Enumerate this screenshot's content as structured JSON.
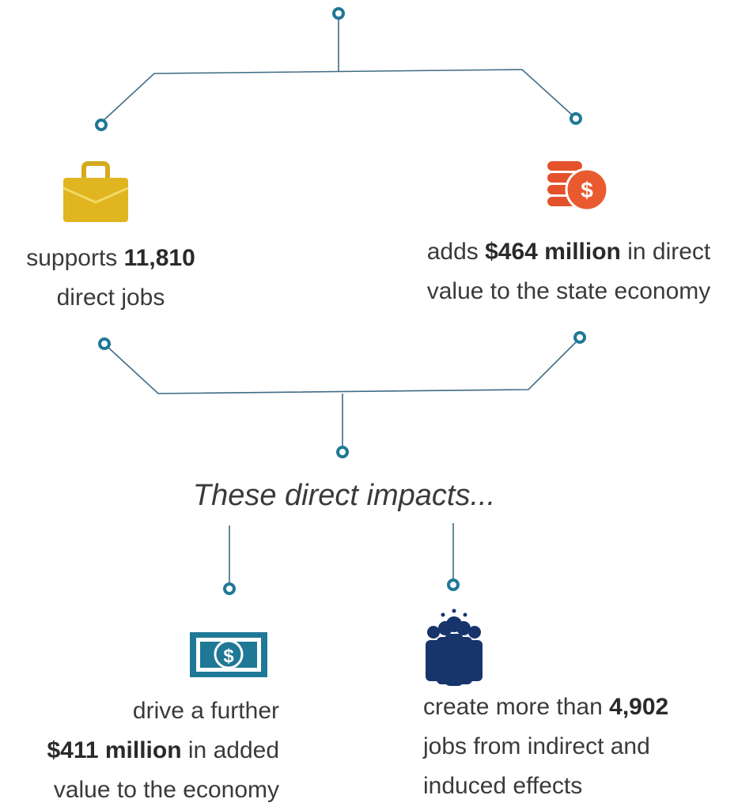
{
  "items": [
    {
      "lines": [
        [
          "supports",
          {
            "text": "11,810",
            "bold": true
          }
        ],
        [
          "direct jobs"
        ]
      ]
    },
    {
      "lines": [
        [
          "adds",
          {
            "text": "$464 million",
            "bold": true
          },
          "in direct"
        ],
        [
          "value to the state economy"
        ]
      ]
    },
    {
      "lines": [
        [
          "These direct impacts..."
        ]
      ]
    },
    {
      "lines": [
        [
          "drive a further"
        ],
        [
          {
            "text": "$411 million",
            "bold": true
          },
          "in added"
        ],
        [
          "value to the economy"
        ]
      ]
    },
    {
      "lines": [
        [
          "create more than",
          {
            "text": "4,902",
            "bold": true
          }
        ],
        [
          "jobs from indirect and"
        ],
        [
          "induced effects"
        ]
      ]
    }
  ]
}
